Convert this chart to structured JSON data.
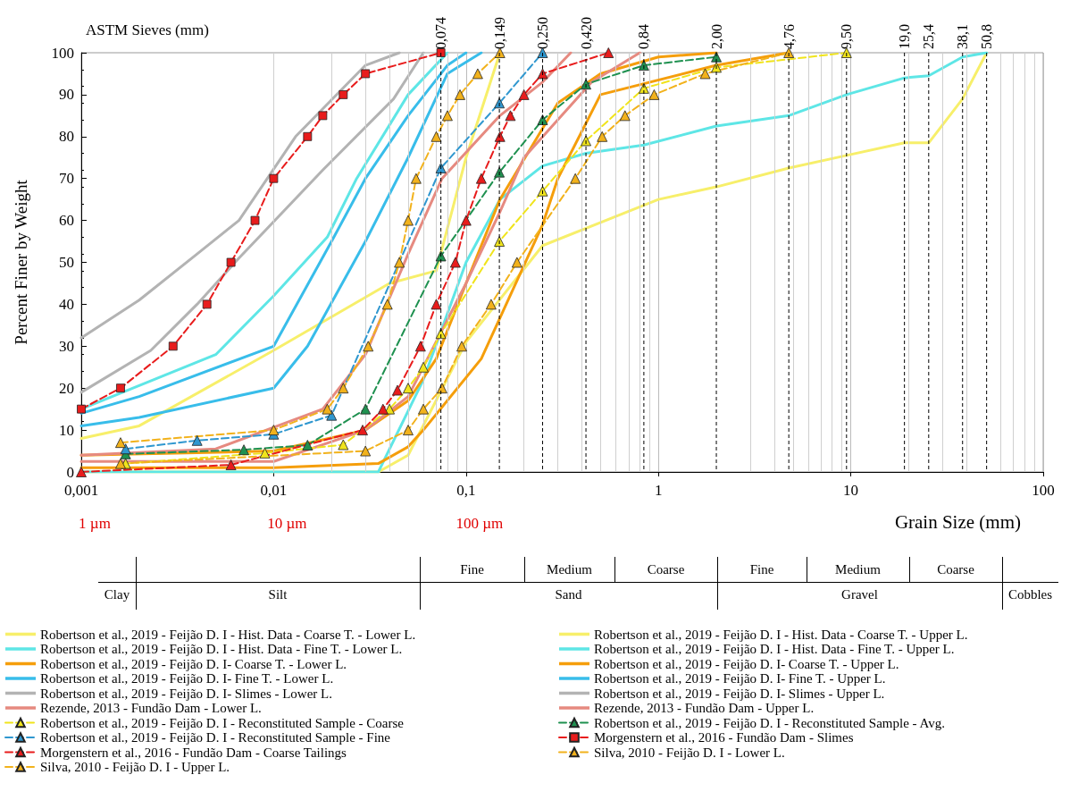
{
  "chart_data": {
    "type": "line",
    "xlabel": "Grain Size (mm)",
    "ylabel": "Percent Finer by Weight",
    "log": "x",
    "grid": "x",
    "legend": "bottom",
    "xlim": [
      0.001,
      100
    ],
    "xticks": [
      {
        "value": 0.001,
        "label": "0,001"
      },
      {
        "value": 0.01,
        "label": "0,01"
      },
      {
        "value": 0.1,
        "label": "0,1"
      },
      1,
      10,
      100
    ],
    "ylim": [
      0,
      100
    ],
    "yticks": [
      0,
      10,
      20,
      30,
      40,
      50,
      60,
      70,
      80,
      90,
      100
    ],
    "annotations": [
      "ASTM Sieves (mm)",
      "1 µm",
      "10 µm",
      "100 µm",
      "Fine",
      "Medium",
      "Coarse",
      "Fine",
      "Medium",
      "Coarse",
      "Clay",
      "Silt",
      "Sand",
      "Gravel",
      "Cobbles"
    ],
    "ref_lines": [
      {
        "axis": "x",
        "value": 0.074,
        "label": "0,074"
      },
      {
        "axis": "x",
        "value": 0.149,
        "label": "0,149"
      },
      {
        "axis": "x",
        "value": 0.25,
        "label": "0,250"
      },
      {
        "axis": "x",
        "value": 0.42,
        "label": "0,420"
      },
      {
        "axis": "x",
        "value": 0.84,
        "label": "0,84"
      },
      {
        "axis": "x",
        "value": 2,
        "label": "2,00"
      },
      {
        "axis": "x",
        "value": 4.76,
        "label": "4,76"
      },
      {
        "axis": "x",
        "value": 9.5,
        "label": "9,50"
      },
      {
        "axis": "x",
        "value": 19,
        "label": "19,0"
      },
      {
        "axis": "x",
        "value": 25.4,
        "label": "25,4"
      },
      {
        "axis": "x",
        "value": 38.1,
        "label": "38,1"
      },
      {
        "axis": "x",
        "value": 50.8,
        "label": "50,8"
      }
    ],
    "series": [
      {
        "name": "Robertson et al., 2019 - Feijão D. I - Hist. Data - Coarse T. - Lower L.",
        "color": "#f7ef6a",
        "marker": "none",
        "line_style": "solid",
        "x": [
          0.001,
          0.035,
          0.05,
          0.1,
          0.25,
          1,
          2,
          4.76,
          9.5,
          19,
          25.4,
          38.1,
          50.8
        ],
        "values": [
          0,
          0,
          4,
          31,
          54,
          65,
          68,
          72.5,
          75.5,
          78.5,
          78.5,
          89,
          100
        ]
      },
      {
        "name": "Robertson et al., 2019 - Feijão D. I - Hist. Data - Coarse T. - Upper L.",
        "color": "#f7ef6a",
        "marker": "none",
        "line_style": "solid",
        "x": [
          0.001,
          0.002,
          0.01,
          0.04,
          0.07,
          0.1,
          0.15
        ],
        "values": [
          8,
          11,
          29,
          45,
          48,
          75,
          100
        ]
      },
      {
        "name": "Robertson et al., 2019 - Feijão D. I - Hist. Data - Fine T. - Lower L.",
        "color": "#5ee6e6",
        "marker": "none",
        "line_style": "solid",
        "x": [
          0.001,
          0.035,
          0.06,
          0.1,
          0.15,
          0.25,
          0.42,
          0.84,
          2,
          4.76,
          9.5,
          19,
          25.4,
          38.1,
          50.8
        ],
        "values": [
          0,
          0,
          22,
          50,
          65,
          73,
          76,
          78,
          82.5,
          85,
          90,
          94,
          94.5,
          99,
          100
        ]
      },
      {
        "name": "Robertson et al., 2019 - Feijão D. I - Hist. Data - Fine T. - Upper L.",
        "color": "#5ee6e6",
        "marker": "none",
        "line_style": "solid",
        "x": [
          0.001,
          0.005,
          0.01,
          0.019,
          0.027,
          0.05,
          0.08
        ],
        "values": [
          15,
          28,
          42,
          56,
          70,
          90,
          100
        ]
      },
      {
        "name": "Robertson et al., 2019 - Feijão D. I- Coarse T. - Lower L.",
        "color": "#f59e0b",
        "marker": "none",
        "line_style": "solid",
        "x": [
          0.001,
          0.01,
          0.035,
          0.05,
          0.06,
          0.12,
          0.25,
          0.3,
          0.5,
          2,
          4.76
        ],
        "values": [
          1,
          1,
          2,
          6,
          10,
          27,
          59,
          70,
          90,
          97,
          100
        ]
      },
      {
        "name": "Robertson et al., 2019 - Feijão D. I- Coarse T. - Upper L.",
        "color": "#f59e0b",
        "marker": "none",
        "line_style": "solid",
        "x": [
          0.001,
          0.01,
          0.03,
          0.05,
          0.07,
          0.1,
          0.15,
          0.3,
          0.5,
          1,
          2
        ],
        "values": [
          4,
          5,
          10,
          17,
          27,
          45,
          65,
          88,
          95,
          99,
          100
        ]
      },
      {
        "name": "Robertson et al., 2019 - Feijão D. I- Fine T. - Lower L.",
        "color": "#38bdea",
        "marker": "none",
        "line_style": "solid",
        "x": [
          0.001,
          0.002,
          0.01,
          0.015,
          0.03,
          0.05,
          0.08,
          0.12
        ],
        "values": [
          11,
          13,
          20,
          30,
          55,
          75,
          95,
          100
        ]
      },
      {
        "name": "Robertson et al., 2019 - Feijão D. I- Fine T. - Upper L.",
        "color": "#38bdea",
        "marker": "none",
        "line_style": "solid",
        "x": [
          0.001,
          0.002,
          0.01,
          0.02,
          0.03,
          0.05,
          0.08,
          0.1
        ],
        "values": [
          14,
          18,
          30,
          55,
          70,
          85,
          97,
          100
        ]
      },
      {
        "name": "Robertson et al., 2019 - Feijão D. I- Slimes - Lower L.",
        "color": "#b3b3b3",
        "marker": "none",
        "line_style": "solid",
        "x": [
          0.001,
          0.0023,
          0.004,
          0.0066,
          0.018,
          0.042,
          0.06
        ],
        "values": [
          19,
          29,
          40,
          51,
          72,
          89,
          100
        ]
      },
      {
        "name": "Robertson et al., 2019 - Feijão D. I- Slimes - Upper L.",
        "color": "#b3b3b3",
        "marker": "none",
        "line_style": "solid",
        "x": [
          0.001,
          0.002,
          0.004,
          0.0066,
          0.013,
          0.03,
          0.045
        ],
        "values": [
          32,
          41,
          52,
          60,
          80,
          97,
          100
        ]
      },
      {
        "name": "Rezende, 2013 - Fundão Dam - Lower L.",
        "color": "#e68a80",
        "marker": "none",
        "line_style": "solid",
        "x": [
          0.001,
          0.01,
          0.03,
          0.05,
          0.1,
          0.15,
          0.2,
          0.45,
          0.8
        ],
        "values": [
          2.5,
          2.5,
          10,
          18,
          45,
          62,
          75,
          93,
          100
        ]
      },
      {
        "name": "Rezende, 2013 - Fundão Dam - Upper L.",
        "color": "#e68a80",
        "marker": "none",
        "line_style": "solid",
        "x": [
          0.001,
          0.005,
          0.018,
          0.03,
          0.05,
          0.075,
          0.15,
          0.25,
          0.35
        ],
        "values": [
          4,
          5.5,
          15,
          28,
          52,
          70,
          85,
          93,
          100
        ]
      },
      {
        "name": "Robertson et al., 2019 - Feijão D. I - Reconstituted Sample - Coarse",
        "color": "#f0e41c",
        "marker": "triangle",
        "line_style": "dashed",
        "x": [
          0.0017,
          0.009,
          0.023,
          0.04,
          0.05,
          0.06,
          0.074,
          0.149,
          0.25,
          0.42,
          0.84,
          2,
          9.5
        ],
        "values": [
          2,
          4.5,
          6.5,
          15,
          20,
          25,
          33,
          55,
          67,
          79,
          91.5,
          96.5,
          100
        ]
      },
      {
        "name": "Robertson et al., 2019 - Feijão D. I - Reconstituted Sample - Avg.",
        "color": "#1f9150",
        "marker": "triangle",
        "line_style": "dashed",
        "x": [
          0.0017,
          0.007,
          0.015,
          0.03,
          0.074,
          0.149,
          0.25,
          0.42,
          0.84,
          2
        ],
        "values": [
          4.3,
          5.3,
          6.4,
          15,
          51.5,
          71.5,
          84,
          92.5,
          97,
          99
        ]
      },
      {
        "name": "Robertson et al., 2019 - Feijão D. I - Reconstituted Sample - Fine",
        "color": "#2f97cf",
        "marker": "triangle",
        "line_style": "dashed",
        "x": [
          0.0017,
          0.004,
          0.01,
          0.02,
          0.074,
          0.149,
          0.25
        ],
        "values": [
          5.5,
          7.5,
          9,
          13.5,
          72.5,
          88,
          100
        ]
      },
      {
        "name": "Morgenstern et al., 2016 - Fundão Dam - Slimes",
        "color": "#e81c1c",
        "marker": "square",
        "line_style": "dashed",
        "x": [
          0.001,
          0.0016,
          0.003,
          0.0045,
          0.006,
          0.008,
          0.01,
          0.015,
          0.018,
          0.023,
          0.03,
          0.074
        ],
        "values": [
          15,
          20,
          30,
          40,
          50,
          60,
          70,
          80,
          85,
          90,
          95,
          100
        ]
      },
      {
        "name": "Morgenstern et al., 2016 - Fundão Dam - Coarse Tailings",
        "color": "#e81c1c",
        "marker": "triangle",
        "line_style": "dashed",
        "x": [
          0.001,
          0.006,
          0.029,
          0.037,
          0.044,
          0.058,
          0.07,
          0.088,
          0.1,
          0.12,
          0.15,
          0.17,
          0.2,
          0.25,
          0.55
        ],
        "values": [
          0,
          1.7,
          10,
          15,
          19.5,
          30,
          40,
          50,
          60,
          70,
          80,
          85,
          90,
          95,
          100
        ]
      },
      {
        "name": "Silva, 2010 - Feijão D. I - Lower L.",
        "color": "#f2b21c",
        "marker": "triangle",
        "line_style": "dashed",
        "x": [
          0.0016,
          0.03,
          0.05,
          0.06,
          0.075,
          0.095,
          0.135,
          0.184,
          0.37,
          0.51,
          0.67,
          0.95,
          1.75,
          4.76
        ],
        "values": [
          2,
          5,
          10,
          15,
          20,
          30,
          40,
          50,
          70,
          80,
          85,
          90,
          95,
          100
        ]
      },
      {
        "name": "Silva, 2010 - Feijão D. I - Upper L.",
        "color": "#f2b21c",
        "marker": "triangle",
        "line_style": "dashed",
        "x": [
          0.0016,
          0.01,
          0.019,
          0.023,
          0.031,
          0.039,
          0.045,
          0.05,
          0.055,
          0.07,
          0.08,
          0.093,
          0.115,
          0.15
        ],
        "values": [
          7,
          10,
          15,
          20,
          30,
          40,
          50,
          60,
          70,
          80,
          85,
          90,
          95,
          100
        ]
      }
    ]
  }
}
